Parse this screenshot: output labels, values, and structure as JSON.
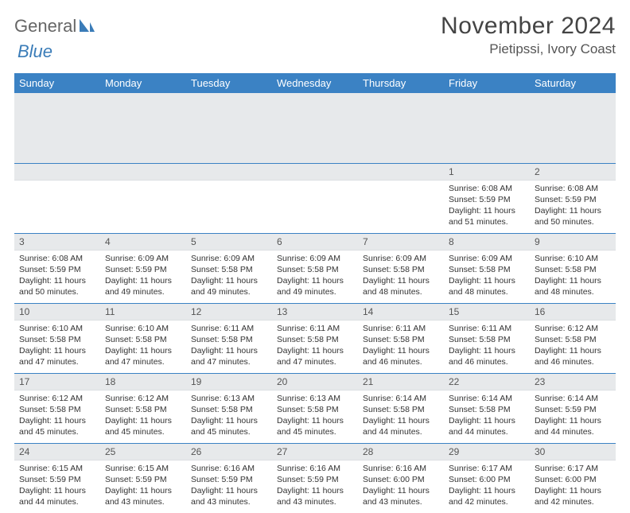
{
  "brand": {
    "general": "General",
    "blue": "Blue"
  },
  "title": {
    "month": "November 2024",
    "location": "Pietipssi, Ivory Coast"
  },
  "colors": {
    "header_bg": "#3b82c4",
    "header_text": "#ffffff",
    "daynum_bg": "#e7e9eb",
    "row_border": "#3b82c4"
  },
  "weekdays": [
    "Sunday",
    "Monday",
    "Tuesday",
    "Wednesday",
    "Thursday",
    "Friday",
    "Saturday"
  ],
  "weeks": [
    [
      null,
      null,
      null,
      null,
      null,
      {
        "n": "1",
        "sunrise": "Sunrise: 6:08 AM",
        "sunset": "Sunset: 5:59 PM",
        "daylight": "Daylight: 11 hours and 51 minutes."
      },
      {
        "n": "2",
        "sunrise": "Sunrise: 6:08 AM",
        "sunset": "Sunset: 5:59 PM",
        "daylight": "Daylight: 11 hours and 50 minutes."
      }
    ],
    [
      {
        "n": "3",
        "sunrise": "Sunrise: 6:08 AM",
        "sunset": "Sunset: 5:59 PM",
        "daylight": "Daylight: 11 hours and 50 minutes."
      },
      {
        "n": "4",
        "sunrise": "Sunrise: 6:09 AM",
        "sunset": "Sunset: 5:59 PM",
        "daylight": "Daylight: 11 hours and 49 minutes."
      },
      {
        "n": "5",
        "sunrise": "Sunrise: 6:09 AM",
        "sunset": "Sunset: 5:58 PM",
        "daylight": "Daylight: 11 hours and 49 minutes."
      },
      {
        "n": "6",
        "sunrise": "Sunrise: 6:09 AM",
        "sunset": "Sunset: 5:58 PM",
        "daylight": "Daylight: 11 hours and 49 minutes."
      },
      {
        "n": "7",
        "sunrise": "Sunrise: 6:09 AM",
        "sunset": "Sunset: 5:58 PM",
        "daylight": "Daylight: 11 hours and 48 minutes."
      },
      {
        "n": "8",
        "sunrise": "Sunrise: 6:09 AM",
        "sunset": "Sunset: 5:58 PM",
        "daylight": "Daylight: 11 hours and 48 minutes."
      },
      {
        "n": "9",
        "sunrise": "Sunrise: 6:10 AM",
        "sunset": "Sunset: 5:58 PM",
        "daylight": "Daylight: 11 hours and 48 minutes."
      }
    ],
    [
      {
        "n": "10",
        "sunrise": "Sunrise: 6:10 AM",
        "sunset": "Sunset: 5:58 PM",
        "daylight": "Daylight: 11 hours and 47 minutes."
      },
      {
        "n": "11",
        "sunrise": "Sunrise: 6:10 AM",
        "sunset": "Sunset: 5:58 PM",
        "daylight": "Daylight: 11 hours and 47 minutes."
      },
      {
        "n": "12",
        "sunrise": "Sunrise: 6:11 AM",
        "sunset": "Sunset: 5:58 PM",
        "daylight": "Daylight: 11 hours and 47 minutes."
      },
      {
        "n": "13",
        "sunrise": "Sunrise: 6:11 AM",
        "sunset": "Sunset: 5:58 PM",
        "daylight": "Daylight: 11 hours and 47 minutes."
      },
      {
        "n": "14",
        "sunrise": "Sunrise: 6:11 AM",
        "sunset": "Sunset: 5:58 PM",
        "daylight": "Daylight: 11 hours and 46 minutes."
      },
      {
        "n": "15",
        "sunrise": "Sunrise: 6:11 AM",
        "sunset": "Sunset: 5:58 PM",
        "daylight": "Daylight: 11 hours and 46 minutes."
      },
      {
        "n": "16",
        "sunrise": "Sunrise: 6:12 AM",
        "sunset": "Sunset: 5:58 PM",
        "daylight": "Daylight: 11 hours and 46 minutes."
      }
    ],
    [
      {
        "n": "17",
        "sunrise": "Sunrise: 6:12 AM",
        "sunset": "Sunset: 5:58 PM",
        "daylight": "Daylight: 11 hours and 45 minutes."
      },
      {
        "n": "18",
        "sunrise": "Sunrise: 6:12 AM",
        "sunset": "Sunset: 5:58 PM",
        "daylight": "Daylight: 11 hours and 45 minutes."
      },
      {
        "n": "19",
        "sunrise": "Sunrise: 6:13 AM",
        "sunset": "Sunset: 5:58 PM",
        "daylight": "Daylight: 11 hours and 45 minutes."
      },
      {
        "n": "20",
        "sunrise": "Sunrise: 6:13 AM",
        "sunset": "Sunset: 5:58 PM",
        "daylight": "Daylight: 11 hours and 45 minutes."
      },
      {
        "n": "21",
        "sunrise": "Sunrise: 6:14 AM",
        "sunset": "Sunset: 5:58 PM",
        "daylight": "Daylight: 11 hours and 44 minutes."
      },
      {
        "n": "22",
        "sunrise": "Sunrise: 6:14 AM",
        "sunset": "Sunset: 5:58 PM",
        "daylight": "Daylight: 11 hours and 44 minutes."
      },
      {
        "n": "23",
        "sunrise": "Sunrise: 6:14 AM",
        "sunset": "Sunset: 5:59 PM",
        "daylight": "Daylight: 11 hours and 44 minutes."
      }
    ],
    [
      {
        "n": "24",
        "sunrise": "Sunrise: 6:15 AM",
        "sunset": "Sunset: 5:59 PM",
        "daylight": "Daylight: 11 hours and 44 minutes."
      },
      {
        "n": "25",
        "sunrise": "Sunrise: 6:15 AM",
        "sunset": "Sunset: 5:59 PM",
        "daylight": "Daylight: 11 hours and 43 minutes."
      },
      {
        "n": "26",
        "sunrise": "Sunrise: 6:16 AM",
        "sunset": "Sunset: 5:59 PM",
        "daylight": "Daylight: 11 hours and 43 minutes."
      },
      {
        "n": "27",
        "sunrise": "Sunrise: 6:16 AM",
        "sunset": "Sunset: 5:59 PM",
        "daylight": "Daylight: 11 hours and 43 minutes."
      },
      {
        "n": "28",
        "sunrise": "Sunrise: 6:16 AM",
        "sunset": "Sunset: 6:00 PM",
        "daylight": "Daylight: 11 hours and 43 minutes."
      },
      {
        "n": "29",
        "sunrise": "Sunrise: 6:17 AM",
        "sunset": "Sunset: 6:00 PM",
        "daylight": "Daylight: 11 hours and 42 minutes."
      },
      {
        "n": "30",
        "sunrise": "Sunrise: 6:17 AM",
        "sunset": "Sunset: 6:00 PM",
        "daylight": "Daylight: 11 hours and 42 minutes."
      }
    ]
  ]
}
